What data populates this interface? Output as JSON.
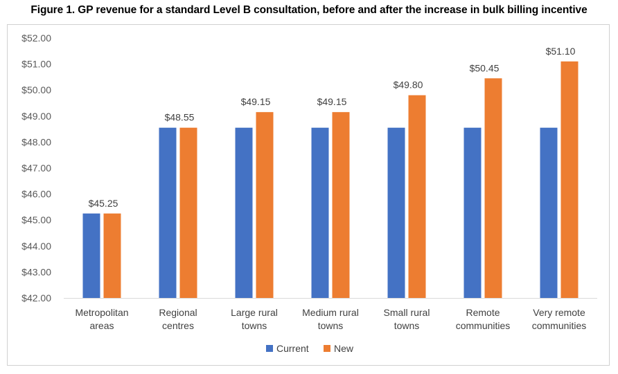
{
  "chart_data": {
    "type": "bar",
    "title": "Figure 1. GP revenue for a standard Level B consultation, before and after the increase in bulk billing incentive",
    "xlabel": "",
    "ylabel": "",
    "ylim": [
      42,
      52
    ],
    "ytick_step": 1,
    "ytick_format": "$0.00",
    "grid": false,
    "legend_position": "bottom",
    "categories": [
      [
        "Metropolitan",
        "areas"
      ],
      [
        "Regional",
        "centres"
      ],
      [
        "Large rural",
        "towns"
      ],
      [
        "Medium rural",
        "towns"
      ],
      [
        "Small rural",
        "towns"
      ],
      [
        "Remote",
        "communities"
      ],
      [
        "Very remote",
        "communities"
      ]
    ],
    "series": [
      {
        "name": "Current",
        "color": "#4472C4",
        "values": [
          45.25,
          48.55,
          48.55,
          48.55,
          48.55,
          48.55,
          48.55
        ]
      },
      {
        "name": "New",
        "color": "#ED7D31",
        "values": [
          45.25,
          48.55,
          49.15,
          49.15,
          49.8,
          50.45,
          51.1
        ]
      }
    ],
    "data_labels": [
      "$45.25",
      "$48.55",
      "$49.15",
      "$49.15",
      "$49.80",
      "$50.45",
      "$51.10"
    ]
  }
}
